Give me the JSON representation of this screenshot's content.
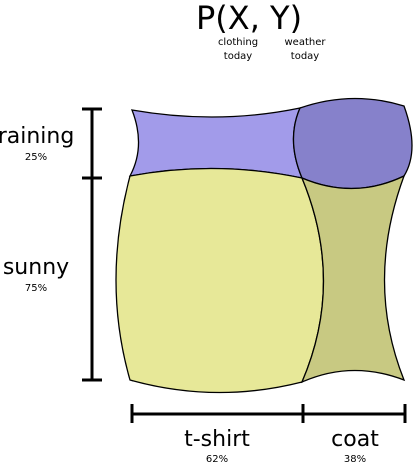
{
  "title": {
    "text": "P(X,  Y)",
    "x_note": "clothing\ntoday",
    "y_note": "weather\ntoday"
  },
  "rows": [
    {
      "label": "raining",
      "pct": "25%",
      "weight": 0.25
    },
    {
      "label": "sunny",
      "pct": "75%",
      "weight": 0.75
    }
  ],
  "cols": [
    {
      "label": "t-shirt",
      "pct": "62%",
      "weight": 0.62
    },
    {
      "label": "coat",
      "pct": "38%",
      "weight": 0.38
    }
  ],
  "colors": {
    "raining_tshirt": "#a29bea",
    "raining_coat": "#8681cb",
    "sunny_tshirt": "#e7e898",
    "sunny_coat": "#c8c982",
    "outline": "#000000"
  }
}
